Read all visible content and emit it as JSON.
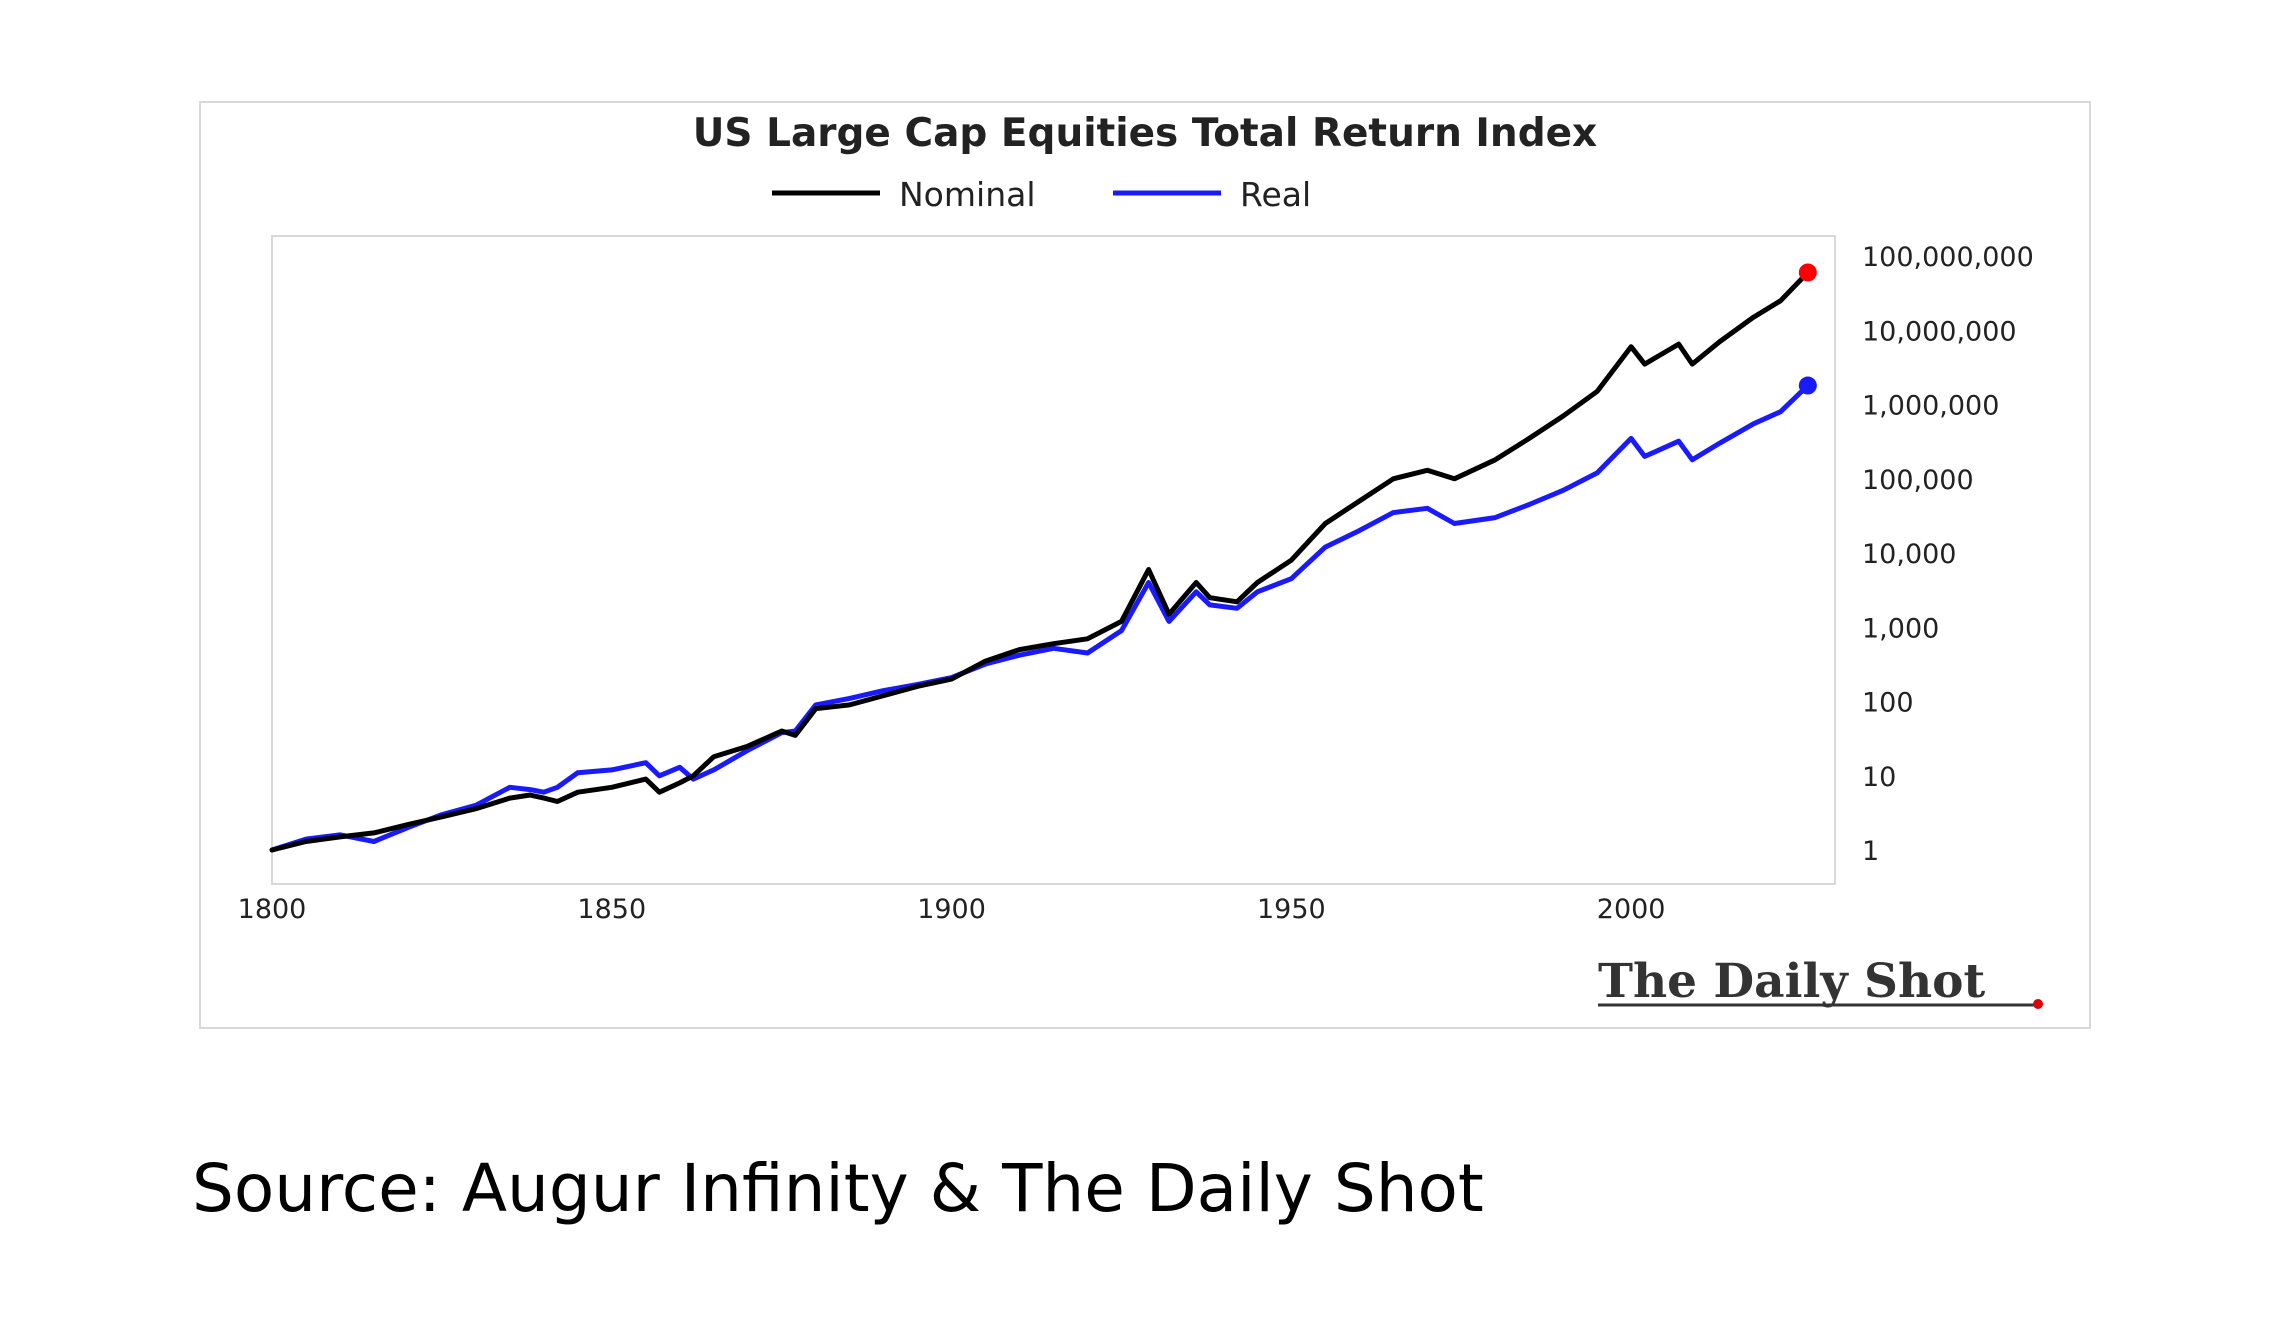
{
  "source_note": "Source: Augur Infinity & The Daily Shot",
  "watermark": "The Daily Shot",
  "colors": {
    "nominal": "#000000",
    "real": "#1a1aff",
    "nominal_end_marker": "#ff0000",
    "real_end_marker": "#1a1aff",
    "plot_border": "#d9d9d9",
    "watermark_dot": "#e00000"
  },
  "chart_data": {
    "type": "line",
    "title": "US Large Cap Equities Total Return Index",
    "xlabel": "",
    "ylabel": "",
    "xlim": [
      1800,
      2030
    ],
    "ylim": [
      1,
      100000000
    ],
    "yscale": "log",
    "grid": false,
    "legend_position": "top-center",
    "x_ticks": [
      "1800",
      "1850",
      "1900",
      "1950",
      "2000"
    ],
    "y_ticks": [
      "1",
      "10",
      "100",
      "1,000",
      "10,000",
      "100,000",
      "1,000,000",
      "10,000,000",
      "100,000,000"
    ],
    "series": [
      {
        "name": "Nominal",
        "points": [
          [
            1800,
            1
          ],
          [
            1805,
            1.3
          ],
          [
            1810,
            1.5
          ],
          [
            1815,
            1.7
          ],
          [
            1820,
            2.2
          ],
          [
            1825,
            2.8
          ],
          [
            1830,
            3.6
          ],
          [
            1835,
            5
          ],
          [
            1838,
            5.5
          ],
          [
            1840,
            5
          ],
          [
            1842,
            4.5
          ],
          [
            1845,
            6
          ],
          [
            1850,
            7
          ],
          [
            1855,
            9
          ],
          [
            1857,
            6
          ],
          [
            1860,
            8
          ],
          [
            1862,
            10
          ],
          [
            1865,
            18
          ],
          [
            1870,
            25
          ],
          [
            1875,
            40
          ],
          [
            1877,
            35
          ],
          [
            1880,
            80
          ],
          [
            1885,
            90
          ],
          [
            1890,
            120
          ],
          [
            1895,
            160
          ],
          [
            1900,
            200
          ],
          [
            1905,
            350
          ],
          [
            1910,
            500
          ],
          [
            1915,
            600
          ],
          [
            1920,
            700
          ],
          [
            1925,
            1200
          ],
          [
            1929,
            6000
          ],
          [
            1932,
            1500
          ],
          [
            1936,
            4000
          ],
          [
            1938,
            2500
          ],
          [
            1942,
            2200
          ],
          [
            1945,
            4000
          ],
          [
            1950,
            8000
          ],
          [
            1955,
            25000
          ],
          [
            1960,
            50000
          ],
          [
            1965,
            100000
          ],
          [
            1970,
            130000
          ],
          [
            1974,
            100000
          ],
          [
            1980,
            180000
          ],
          [
            1985,
            350000
          ],
          [
            1990,
            700000
          ],
          [
            1995,
            1500000
          ],
          [
            2000,
            6000000
          ],
          [
            2002,
            3500000
          ],
          [
            2007,
            6500000
          ],
          [
            2009,
            3500000
          ],
          [
            2013,
            7000000
          ],
          [
            2018,
            15000000
          ],
          [
            2022,
            25000000
          ],
          [
            2026,
            60000000
          ]
        ]
      },
      {
        "name": "Real",
        "points": [
          [
            1800,
            1
          ],
          [
            1805,
            1.4
          ],
          [
            1810,
            1.6
          ],
          [
            1815,
            1.3
          ],
          [
            1820,
            2
          ],
          [
            1825,
            3
          ],
          [
            1830,
            4
          ],
          [
            1835,
            7
          ],
          [
            1838,
            6.5
          ],
          [
            1840,
            6
          ],
          [
            1842,
            7
          ],
          [
            1845,
            11
          ],
          [
            1850,
            12
          ],
          [
            1855,
            15
          ],
          [
            1857,
            10
          ],
          [
            1860,
            13
          ],
          [
            1862,
            9
          ],
          [
            1865,
            12
          ],
          [
            1870,
            22
          ],
          [
            1875,
            38
          ],
          [
            1877,
            40
          ],
          [
            1880,
            90
          ],
          [
            1885,
            110
          ],
          [
            1890,
            140
          ],
          [
            1895,
            170
          ],
          [
            1900,
            210
          ],
          [
            1905,
            320
          ],
          [
            1910,
            420
          ],
          [
            1915,
            520
          ],
          [
            1920,
            450
          ],
          [
            1925,
            900
          ],
          [
            1929,
            4000
          ],
          [
            1932,
            1200
          ],
          [
            1936,
            3000
          ],
          [
            1938,
            2000
          ],
          [
            1942,
            1800
          ],
          [
            1945,
            3000
          ],
          [
            1950,
            4500
          ],
          [
            1955,
            12000
          ],
          [
            1960,
            20000
          ],
          [
            1965,
            35000
          ],
          [
            1970,
            40000
          ],
          [
            1974,
            25000
          ],
          [
            1980,
            30000
          ],
          [
            1985,
            45000
          ],
          [
            1990,
            70000
          ],
          [
            1995,
            120000
          ],
          [
            2000,
            350000
          ],
          [
            2002,
            200000
          ],
          [
            2007,
            320000
          ],
          [
            2009,
            180000
          ],
          [
            2013,
            300000
          ],
          [
            2018,
            550000
          ],
          [
            2022,
            800000
          ],
          [
            2026,
            1800000
          ]
        ]
      }
    ]
  }
}
